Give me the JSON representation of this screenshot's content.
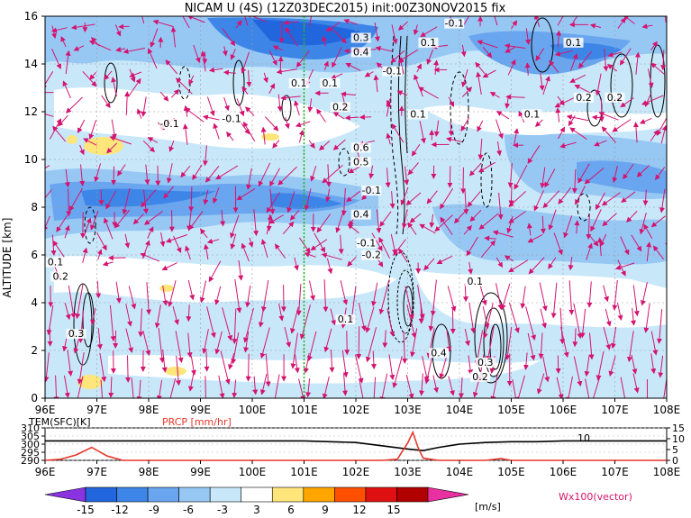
{
  "chart_data": [
    {
      "type": "heatmap",
      "title": "NICAM U (4S) (12Z03DEC2015) init:00Z30NOV2015 fix",
      "ylabel": "ALTITUDE [km]",
      "xlabel": "",
      "x_ticks": [
        "96E",
        "97E",
        "98E",
        "99E",
        "100E",
        "101E",
        "102E",
        "103E",
        "104E",
        "105E",
        "106E",
        "107E",
        "108E"
      ],
      "y_ticks": [
        "0",
        "2",
        "4",
        "6",
        "8",
        "10",
        "12",
        "14",
        "16"
      ],
      "xlim": [
        96,
        108
      ],
      "ylim": [
        0,
        16
      ],
      "grid": true,
      "marker_line_lon": 101,
      "contour_labels": [
        {
          "text": "-0.1",
          "lon": 98.4,
          "alt": 11.4
        },
        {
          "text": "-0.1",
          "lon": 99.6,
          "alt": 11.6
        },
        {
          "text": "0.1",
          "lon": 100.9,
          "alt": 13.1
        },
        {
          "text": "0.2",
          "lon": 101.7,
          "alt": 12.1
        },
        {
          "text": "0.1",
          "lon": 101.5,
          "alt": 13.1
        },
        {
          "text": "0.3",
          "lon": 102.1,
          "alt": 15.0
        },
        {
          "text": "0.4",
          "lon": 102.1,
          "alt": 14.4
        },
        {
          "text": "0.1",
          "lon": 103.4,
          "alt": 14.8
        },
        {
          "text": "-0.1",
          "lon": 103.9,
          "alt": 15.6
        },
        {
          "text": "-0.1",
          "lon": 102.7,
          "alt": 13.6
        },
        {
          "text": "0.1",
          "lon": 103.2,
          "alt": 11.8
        },
        {
          "text": "0.6",
          "lon": 102.1,
          "alt": 10.4
        },
        {
          "text": "0.5",
          "lon": 102.1,
          "alt": 9.8
        },
        {
          "text": "-0.1",
          "lon": 102.3,
          "alt": 8.6
        },
        {
          "text": "0.4",
          "lon": 102.1,
          "alt": 7.6
        },
        {
          "text": "-0.1",
          "lon": 102.2,
          "alt": 6.4
        },
        {
          "text": "0.1",
          "lon": 105.4,
          "alt": 11.8
        },
        {
          "text": "0.1",
          "lon": 106.2,
          "alt": 14.8
        },
        {
          "text": "0.2",
          "lon": 106.4,
          "alt": 12.5
        },
        {
          "text": "0.2",
          "lon": 107.0,
          "alt": 12.5
        },
        {
          "text": "0.1",
          "lon": 96.2,
          "alt": 5.6
        },
        {
          "text": "0.2",
          "lon": 96.3,
          "alt": 5.0
        },
        {
          "text": "0.3",
          "lon": 96.6,
          "alt": 2.6
        },
        {
          "text": "0.1",
          "lon": 104.3,
          "alt": 4.8
        },
        {
          "text": "0.4",
          "lon": 103.6,
          "alt": 1.8
        },
        {
          "text": "0.3",
          "lon": 104.5,
          "alt": 1.4
        },
        {
          "text": "0.2",
          "lon": 104.4,
          "alt": 0.8
        },
        {
          "text": "0.1",
          "lon": 101.8,
          "alt": 3.2
        },
        {
          "text": "-0.2",
          "lon": 102.3,
          "alt": 5.9
        }
      ]
    },
    {
      "type": "line",
      "x_ticks": [
        "96E",
        "97E",
        "98E",
        "99E",
        "100E",
        "101E",
        "102E",
        "103E",
        "104E",
        "105E",
        "106E",
        "107E",
        "108E"
      ],
      "xlim": [
        96,
        108
      ],
      "series": [
        {
          "name": "TEM(SFC)[K]",
          "axis": "left",
          "color": "#000000",
          "x": [
            96,
            97,
            98,
            99,
            100,
            101,
            102,
            102.5,
            103,
            103.3,
            103.6,
            104,
            104.5,
            105,
            105.5,
            106,
            106.5,
            107,
            108
          ],
          "y": [
            302,
            302,
            302,
            302,
            302,
            302,
            301,
            299,
            297,
            296,
            298,
            300,
            301,
            301.5,
            301.5,
            302,
            302,
            302,
            302
          ]
        },
        {
          "name": "PRCP [mm/hr]",
          "axis": "right",
          "color": "#e8372a",
          "x": [
            96,
            96.3,
            96.6,
            96.9,
            97.2,
            97.5,
            98,
            99,
            100,
            101,
            102,
            102.5,
            102.8,
            103,
            103.1,
            103.2,
            103.3,
            103.6,
            104,
            104.5,
            104.8,
            105,
            106,
            107,
            108
          ],
          "y": [
            0,
            0.5,
            2.5,
            6,
            2,
            0,
            0,
            0,
            0,
            0,
            0,
            0,
            0.5,
            8,
            13,
            6,
            1,
            0,
            0,
            0,
            0.8,
            0,
            0,
            0,
            0
          ]
        }
      ],
      "left_axis": {
        "ticks": [
          "290",
          "295",
          "300",
          "305",
          "310"
        ],
        "range": [
          290,
          310
        ]
      },
      "right_axis": {
        "ticks": [
          "0",
          "5",
          "10",
          "15"
        ],
        "range": [
          0,
          15
        ]
      },
      "annotation": {
        "text": "10",
        "lon": 106.4
      }
    }
  ],
  "colorbar": {
    "ticks": [
      "-15",
      "-12",
      "-9",
      "-6",
      "-3",
      "3",
      "6",
      "9",
      "12",
      "15"
    ],
    "unit": "[m/s]",
    "colors": [
      "#8a33e0",
      "#2266dd",
      "#3d86e8",
      "#6aa6ef",
      "#97c8f4",
      "#c8e8fa",
      "#ffffff",
      "#ffe57a",
      "#ffa500",
      "#ff5000",
      "#e01010",
      "#b00000",
      "#e830a0"
    ]
  },
  "vector_label": "Wx100(vector)",
  "colors": {
    "vector": "#d41470",
    "marker_line": "#18b818",
    "grid": "#999999"
  }
}
